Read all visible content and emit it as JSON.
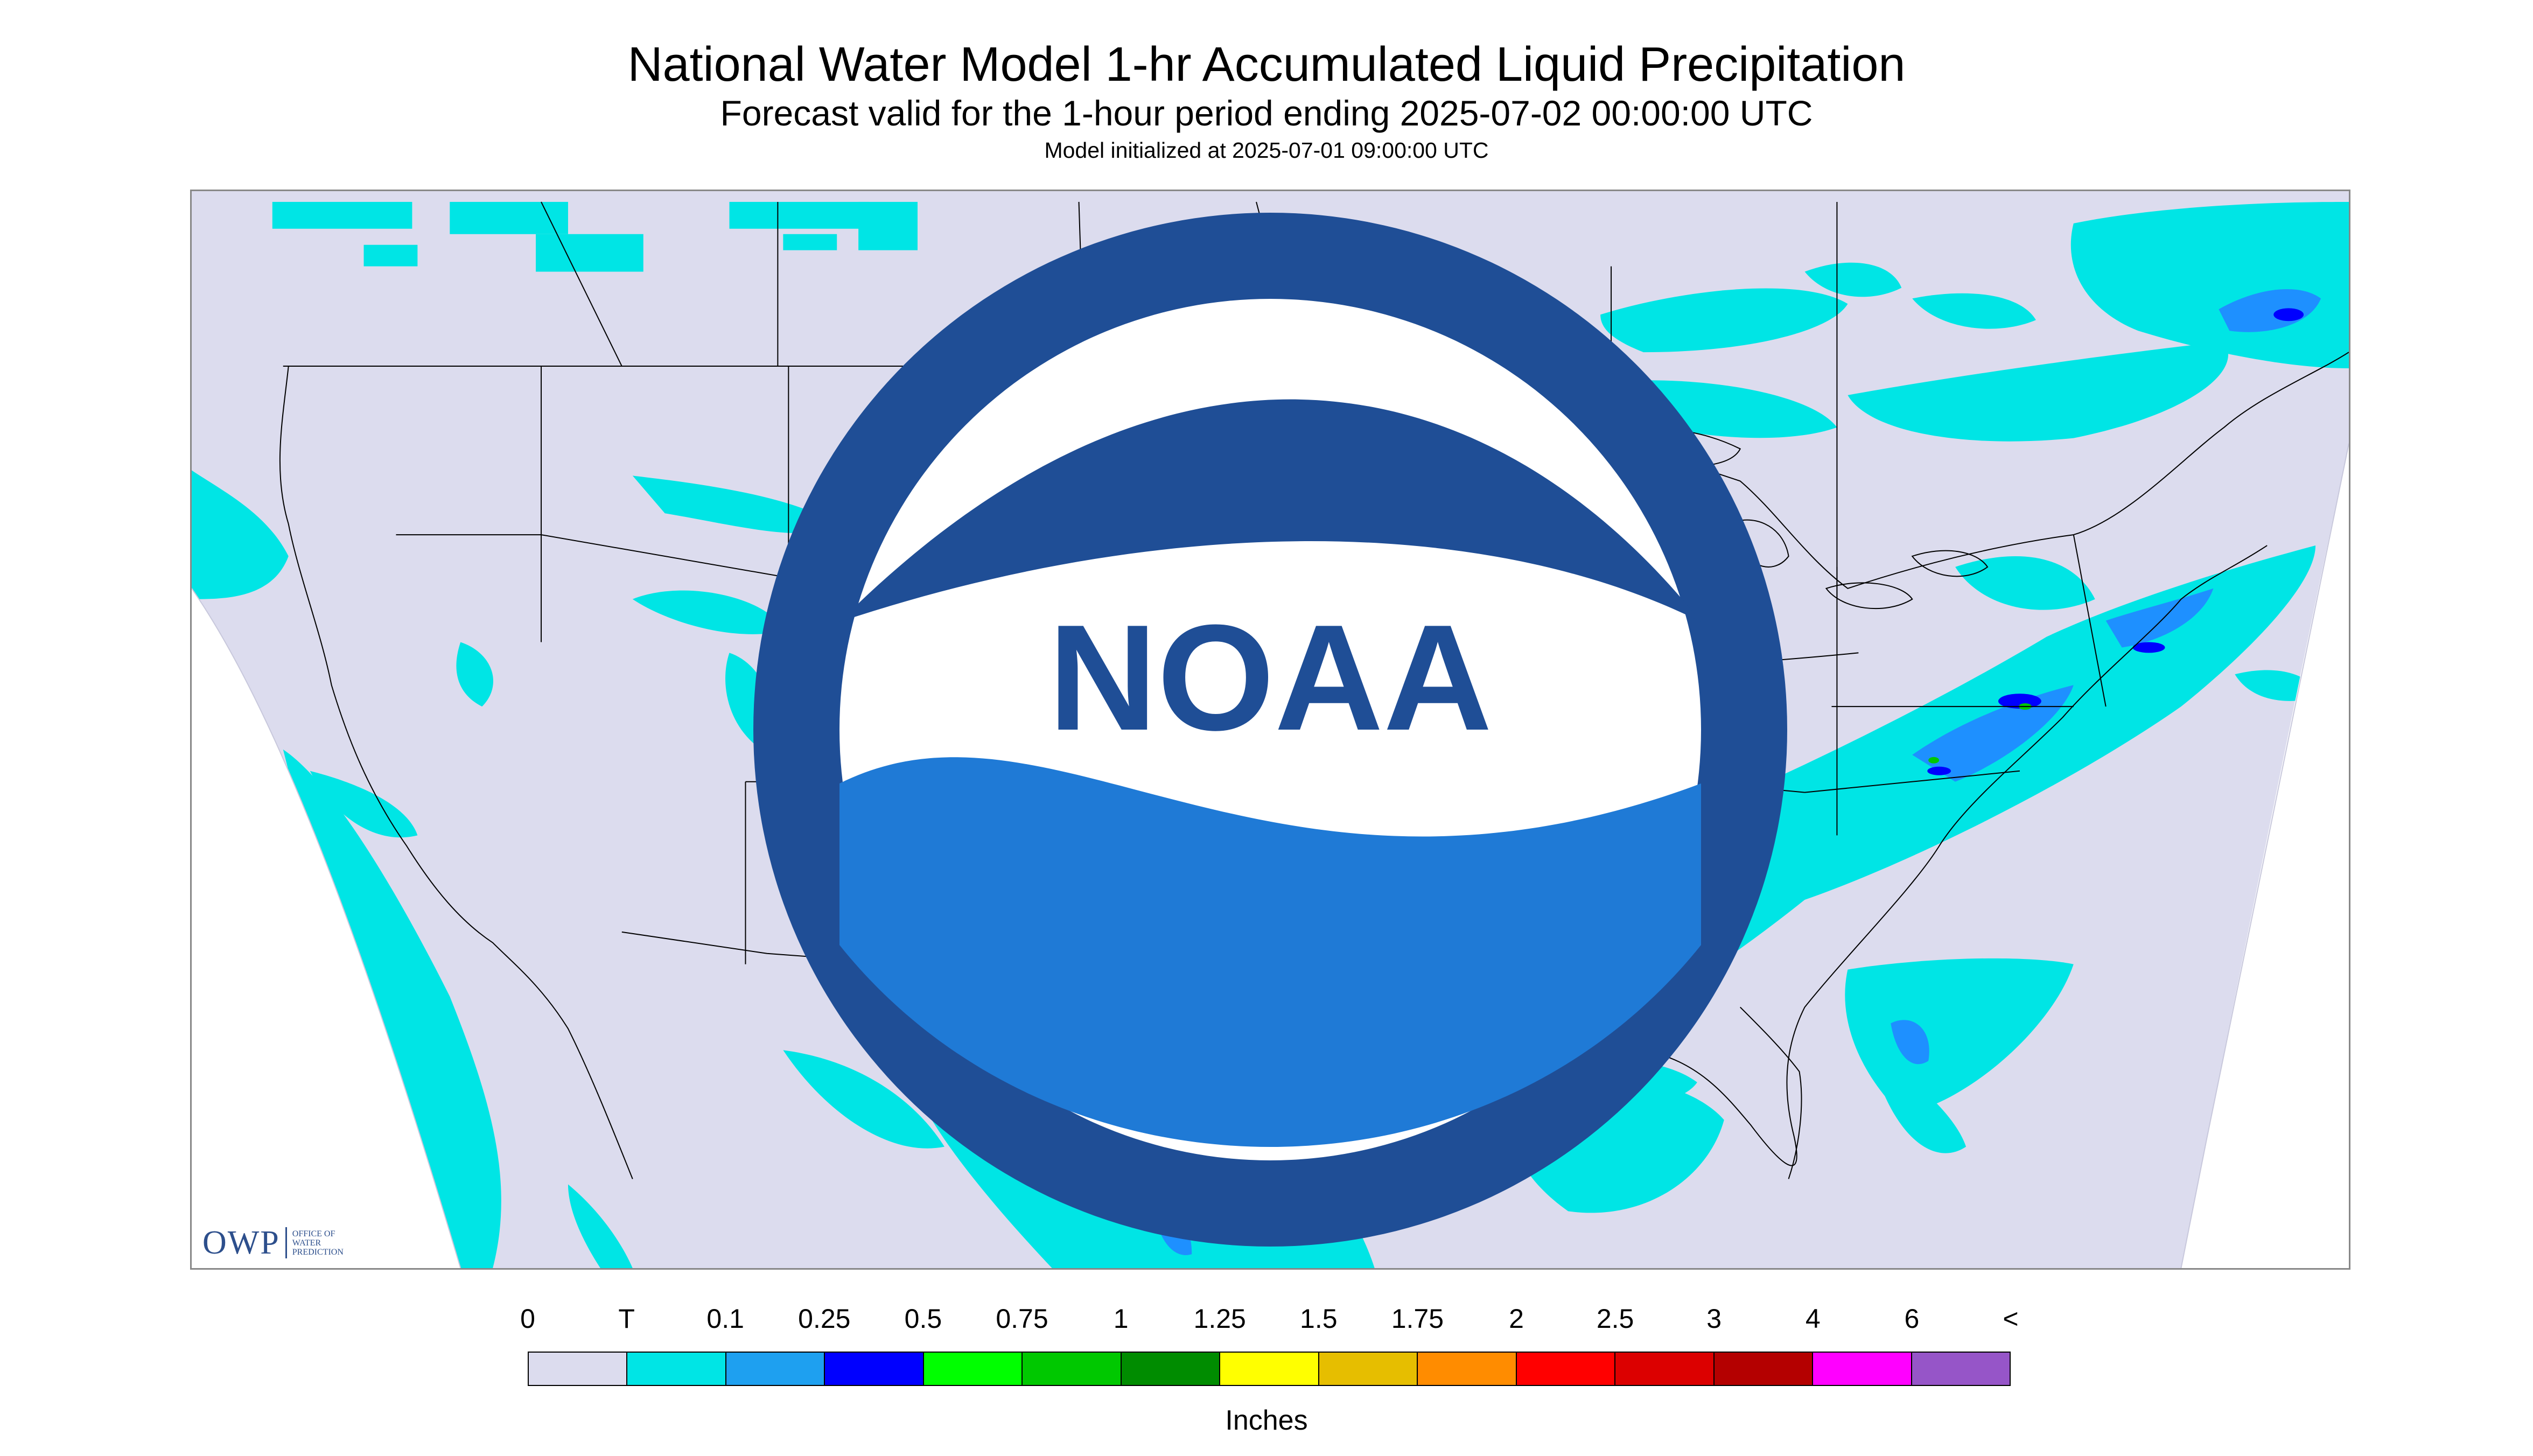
{
  "header": {
    "title": "National Water Model 1-hr Accumulated Liquid Precipitation",
    "subtitle": "Forecast valid for the 1-hour period ending 2025-07-02 00:00:00 UTC",
    "init": "Model initialized at 2025-07-01 09:00:00 UTC"
  },
  "map": {
    "background_color": "#dcdcee",
    "outside_color": "#ffffff",
    "boundary_color": "#000000",
    "precip_light_color": "#00e5e5",
    "precip_mid_color": "#1e90ff",
    "precip_heavy_color": "#0000ff",
    "precip_green_color": "#00c800"
  },
  "logos": {
    "owp_mark": "OWP",
    "owp_line1": "OFFICE OF",
    "owp_line2": "WATER",
    "owp_line3": "PREDICTION",
    "noaa_text": "NOAA",
    "noaa_icon": "noaa-seal-icon"
  },
  "legend": {
    "labels": [
      "0",
      "T",
      "0.1",
      "0.25",
      "0.5",
      "0.75",
      "1",
      "1.25",
      "1.5",
      "1.75",
      "2",
      "2.5",
      "3",
      "4",
      "6",
      "<"
    ],
    "colors": [
      "#dcdcee",
      "#00e5e5",
      "#1ea0f0",
      "#0000ff",
      "#00ff00",
      "#00c800",
      "#008c00",
      "#ffff00",
      "#e6be00",
      "#ff8c00",
      "#ff0000",
      "#dc0000",
      "#b40000",
      "#ff00ff",
      "#9655c8"
    ],
    "units": "Inches"
  }
}
